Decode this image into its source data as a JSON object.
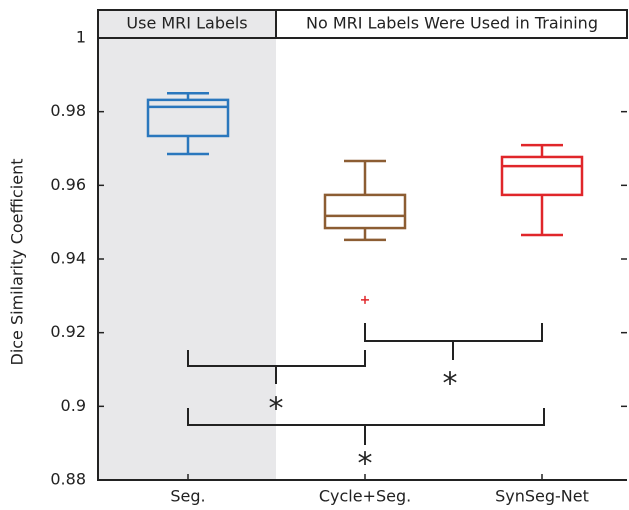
{
  "chart_data": {
    "type": "box",
    "ylabel": "Dice Similarity Coefficient",
    "header": [
      "Use MRI Labels",
      "No MRI Labels Were Used in Training"
    ],
    "categories": [
      "Seg.",
      "Cycle+Seg.",
      "SynSeg-Net"
    ],
    "boxes": [
      {
        "min": 0.9685,
        "q1": 0.9734,
        "median": 0.9813,
        "q3": 0.9832,
        "max": 0.985,
        "outliers": [],
        "color": "#2a77bd"
      },
      {
        "min": 0.9452,
        "q1": 0.9484,
        "median": 0.9517,
        "q3": 0.9574,
        "max": 0.9666,
        "outliers": [
          0.9289
        ],
        "color": "#8c5d33"
      },
      {
        "min": 0.9465,
        "q1": 0.9574,
        "median": 0.9652,
        "q3": 0.9677,
        "max": 0.9709,
        "outliers": [],
        "color": "#e0262a"
      }
    ],
    "outlier_color": "#e0262a",
    "ylim": [
      0.88,
      1
    ],
    "yticks": [
      0.88,
      0.9,
      0.92,
      0.94,
      0.96,
      0.98,
      1
    ],
    "annotations": [
      "*",
      "*",
      "*"
    ]
  }
}
